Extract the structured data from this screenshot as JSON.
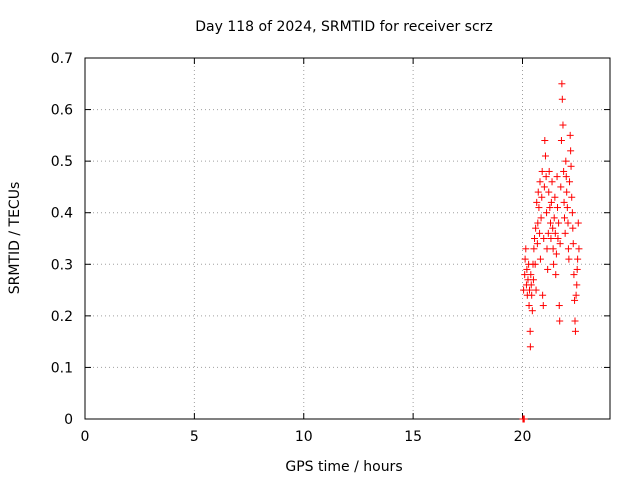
{
  "chart_data": {
    "type": "scatter",
    "title": "Day 118 of 2024, SRMTID for receiver scrz",
    "xlabel": "GPS time / hours",
    "ylabel": "SRMTID / TECUs",
    "xlim": [
      0,
      24
    ],
    "ylim": [
      0,
      0.7
    ],
    "xticks": [
      0,
      5,
      10,
      15,
      20
    ],
    "yticks": [
      0,
      0.1,
      0.2,
      0.3,
      0.4,
      0.5,
      0.6,
      0.7
    ],
    "grid": true,
    "marker": "+",
    "color": "#ff0000",
    "series": [
      {
        "name": "SRMTID",
        "points": [
          [
            20.02,
            0.0
          ],
          [
            20.05,
            0.0
          ],
          [
            20.08,
            0.0
          ],
          [
            20.05,
            0.25
          ],
          [
            20.1,
            0.28
          ],
          [
            20.12,
            0.31
          ],
          [
            20.15,
            0.33
          ],
          [
            20.18,
            0.26
          ],
          [
            20.2,
            0.29
          ],
          [
            20.22,
            0.24
          ],
          [
            20.25,
            0.27
          ],
          [
            20.28,
            0.3
          ],
          [
            20.3,
            0.22
          ],
          [
            20.32,
            0.25
          ],
          [
            20.35,
            0.17
          ],
          [
            20.36,
            0.14
          ],
          [
            20.38,
            0.28
          ],
          [
            20.4,
            0.26
          ],
          [
            20.42,
            0.24
          ],
          [
            20.45,
            0.21
          ],
          [
            20.48,
            0.3
          ],
          [
            20.5,
            0.27
          ],
          [
            20.52,
            0.33
          ],
          [
            20.55,
            0.35
          ],
          [
            20.58,
            0.3
          ],
          [
            20.6,
            0.37
          ],
          [
            20.62,
            0.25
          ],
          [
            20.65,
            0.42
          ],
          [
            20.68,
            0.34
          ],
          [
            20.7,
            0.38
          ],
          [
            20.72,
            0.44
          ],
          [
            20.75,
            0.41
          ],
          [
            20.78,
            0.36
          ],
          [
            20.8,
            0.46
          ],
          [
            20.82,
            0.31
          ],
          [
            20.85,
            0.39
          ],
          [
            20.88,
            0.43
          ],
          [
            20.9,
            0.48
          ],
          [
            20.92,
            0.24
          ],
          [
            20.95,
            0.22
          ],
          [
            20.97,
            0.35
          ],
          [
            21.0,
            0.45
          ],
          [
            21.02,
            0.54
          ],
          [
            21.05,
            0.51
          ],
          [
            21.08,
            0.47
          ],
          [
            21.1,
            0.4
          ],
          [
            21.12,
            0.33
          ],
          [
            21.15,
            0.29
          ],
          [
            21.18,
            0.36
          ],
          [
            21.2,
            0.44
          ],
          [
            21.22,
            0.48
          ],
          [
            21.25,
            0.41
          ],
          [
            21.28,
            0.38
          ],
          [
            21.3,
            0.35
          ],
          [
            21.32,
            0.42
          ],
          [
            21.35,
            0.46
          ],
          [
            21.38,
            0.37
          ],
          [
            21.4,
            0.33
          ],
          [
            21.42,
            0.3
          ],
          [
            21.45,
            0.39
          ],
          [
            21.48,
            0.43
          ],
          [
            21.5,
            0.36
          ],
          [
            21.52,
            0.28
          ],
          [
            21.55,
            0.32
          ],
          [
            21.58,
            0.47
          ],
          [
            21.6,
            0.41
          ],
          [
            21.62,
            0.35
          ],
          [
            21.65,
            0.38
          ],
          [
            21.68,
            0.22
          ],
          [
            21.7,
            0.19
          ],
          [
            21.72,
            0.34
          ],
          [
            21.75,
            0.45
          ],
          [
            21.78,
            0.54
          ],
          [
            21.8,
            0.65
          ],
          [
            21.82,
            0.62
          ],
          [
            21.85,
            0.57
          ],
          [
            21.88,
            0.48
          ],
          [
            21.9,
            0.42
          ],
          [
            21.92,
            0.39
          ],
          [
            21.95,
            0.36
          ],
          [
            21.98,
            0.5
          ],
          [
            22.0,
            0.47
          ],
          [
            22.02,
            0.44
          ],
          [
            22.05,
            0.41
          ],
          [
            22.08,
            0.38
          ],
          [
            22.1,
            0.33
          ],
          [
            22.12,
            0.31
          ],
          [
            22.15,
            0.46
          ],
          [
            22.18,
            0.55
          ],
          [
            22.2,
            0.52
          ],
          [
            22.22,
            0.49
          ],
          [
            22.25,
            0.43
          ],
          [
            22.28,
            0.4
          ],
          [
            22.3,
            0.37
          ],
          [
            22.32,
            0.34
          ],
          [
            22.35,
            0.28
          ],
          [
            22.38,
            0.23
          ],
          [
            22.4,
            0.19
          ],
          [
            22.42,
            0.17
          ],
          [
            22.45,
            0.24
          ],
          [
            22.48,
            0.26
          ],
          [
            22.5,
            0.29
          ],
          [
            22.52,
            0.31
          ],
          [
            22.55,
            0.38
          ],
          [
            22.58,
            0.33
          ]
        ]
      }
    ]
  }
}
